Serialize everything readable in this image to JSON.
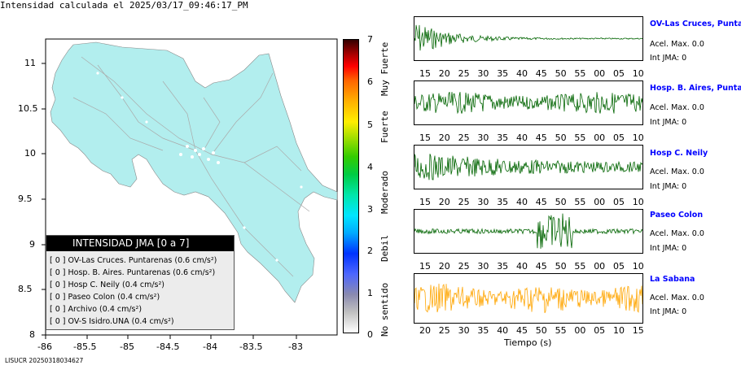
{
  "map": {
    "title": "Intensidad calculada el 2025/03/17_09:46:17_PM",
    "lon_ticks": [
      "-86",
      "-85.5",
      "-85",
      "-84.5",
      "-84",
      "-83.5",
      "-83"
    ],
    "lat_ticks": [
      "11",
      "10.5",
      "10",
      "9.5",
      "9",
      "8.5",
      "8"
    ],
    "land_color": "#b2eeee"
  },
  "legend": {
    "title": "INTENSIDAD JMA [0 a 7]",
    "items": [
      "[ 0 ]  OV-Las Cruces. Puntarenas (0.6 cm/s²)",
      "[ 0 ]  Hosp. B. Aires. Puntarenas (0.6 cm/s²)",
      "[ 0 ]  Hosp C. Neily (0.4 cm/s²)",
      "[ 0 ]  Paseo Colon (0.4 cm/s²)",
      "[ 0 ]  Archivo (0.4 cm/s²)",
      "[ 0 ]  OV-S Isidro.UNA (0.4 cm/s²)"
    ]
  },
  "colorbar": {
    "numbers": [
      "7",
      "6",
      "5",
      "4",
      "3",
      "2",
      "1",
      "0"
    ],
    "labels": [
      "Muy Fuerte",
      "Fuerte",
      "Moderado",
      "Debil",
      "No sentido"
    ]
  },
  "traces": {
    "xlabel": "Tiempo (s)",
    "ticks_a": [
      "15",
      "20",
      "25",
      "30",
      "35",
      "40",
      "45",
      "50",
      "55",
      "00",
      "05",
      "10"
    ],
    "ticks_b": [
      "20",
      "25",
      "30",
      "35",
      "40",
      "45",
      "50",
      "55",
      "00",
      "05",
      "10",
      "15"
    ],
    "stations": [
      {
        "name": "OV-Las Cruces, Puntar",
        "acel": "Acel. Max. 0.0",
        "jma": "Int JMA: 0",
        "color": "#006400"
      },
      {
        "name": "Hosp. B. Aires, Puntare",
        "acel": "Acel. Max. 0.0",
        "jma": "Int JMA: 0",
        "color": "#006400"
      },
      {
        "name": "Hosp C. Neily",
        "acel": "Acel. Max. 0.0",
        "jma": "Int JMA: 0",
        "color": "#006400"
      },
      {
        "name": "Paseo Colon",
        "acel": "Acel. Max. 0.0",
        "jma": "Int JMA: 0",
        "color": "#006400"
      },
      {
        "name": "La Sabana",
        "acel": "Acel. Max. 0.0",
        "jma": "Int JMA: 0",
        "color": "#ffa500"
      }
    ]
  },
  "footer": "LISUCR 20250318034627"
}
